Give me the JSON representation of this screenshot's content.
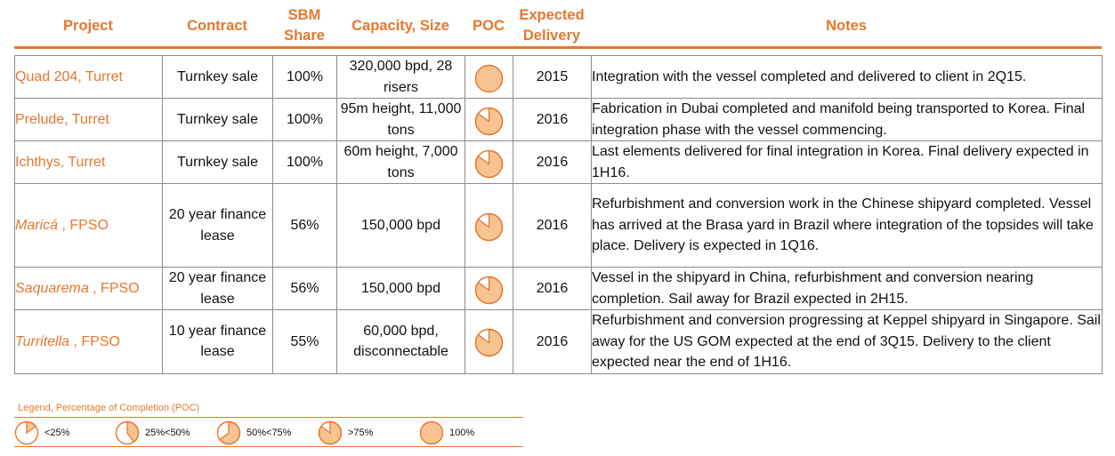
{
  "colors": {
    "accent": "#e6772e",
    "pie_fill": "#f7c491",
    "border": "#8c8c8c"
  },
  "headers": {
    "project": "Project",
    "contract": "Contract",
    "share_line1": "SBM",
    "share_line2": "Share",
    "capacity": "Capacity, Size",
    "poc": "POC",
    "delivery_line1": "Expected",
    "delivery_line2": "Delivery",
    "notes": "Notes"
  },
  "rows": [
    {
      "project_name": "Quad 204",
      "project_rest": ", Turret",
      "contract": "Turnkey sale",
      "share": "100%",
      "capacity": "320,000 bpd, 28 risers",
      "poc_fraction": 1.0,
      "delivery": "2015",
      "notes": "Integration with the vessel completed and delivered to client in 2Q15."
    },
    {
      "project_name": "Prelude",
      "project_rest": ", Turret",
      "contract": "Turnkey sale",
      "share": "100%",
      "capacity": "95m height, 11,000 tons",
      "poc_fraction": 0.85,
      "delivery": "2016",
      "notes": "Fabrication in Dubai completed and manifold being transported to Korea.  Final integration phase with the vessel commencing."
    },
    {
      "project_name": "Ichthys",
      "project_rest": ", Turret",
      "contract": "Turnkey sale",
      "share": "100%",
      "capacity": "60m height, 7,000 tons",
      "poc_fraction": 0.85,
      "delivery": "2016",
      "notes": "Last elements delivered for final integration in Korea.  Final delivery expected in 1H16."
    },
    {
      "project_name": "Maricá",
      "project_rest": " , FPSO",
      "contract": "20 year finance lease",
      "share": "56%",
      "capacity": "150,000 bpd",
      "poc_fraction": 0.85,
      "delivery": "2016",
      "notes": "Refurbishment and conversion work in the Chinese shipyard completed.  Vessel has arrived at the Brasa yard in Brazil where integration of the topsides will take place. Delivery is expected in 1Q16."
    },
    {
      "project_name": "Saquarema",
      "project_rest": " , FPSO",
      "contract": "20 year finance lease",
      "share": "56%",
      "capacity": "150,000 bpd",
      "poc_fraction": 0.85,
      "delivery": "2016",
      "notes": "Vessel in the shipyard in China, refurbishment and conversion nearing completion.  Sail away for Brazil expected in 2H15."
    },
    {
      "project_name": "Turritella",
      "project_rest": " , FPSO",
      "contract": "10 year finance lease",
      "share": "55%",
      "capacity": "60,000 bpd, disconnectable",
      "poc_fraction": 0.85,
      "delivery": "2016",
      "notes": "Refurbishment and conversion progressing at Keppel shipyard in Singapore.  Sail away for the US GOM expected at the end of 3Q15. Delivery to the client expected near the end of 1H16."
    }
  ],
  "legend": {
    "title": "Legend, Percentage of Completion (POC)",
    "items": [
      {
        "label": "<25%",
        "fraction": 0.15
      },
      {
        "label": "25%<50%",
        "fraction": 0.4
      },
      {
        "label": "50%<75%",
        "fraction": 0.65
      },
      {
        "label": ">75%",
        "fraction": 0.85
      },
      {
        "label": "100%",
        "fraction": 1.0
      }
    ]
  }
}
